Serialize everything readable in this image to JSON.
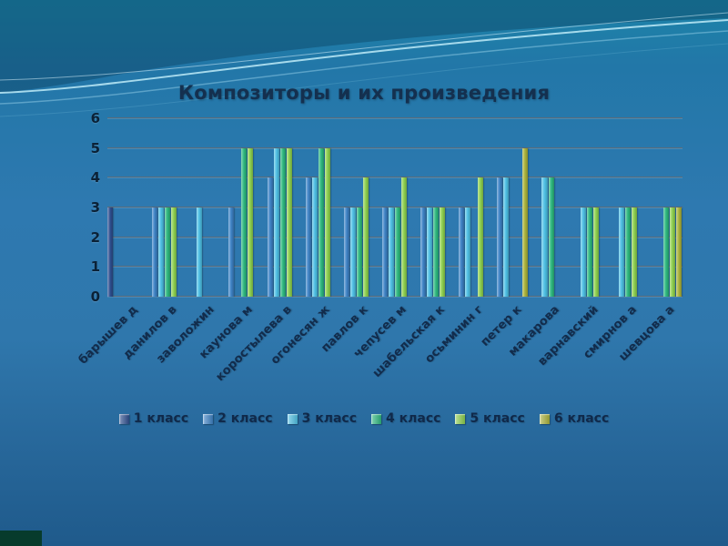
{
  "slide": {
    "title": "Композиторы и их произведения"
  },
  "chart_data": {
    "type": "bar",
    "title": "Композиторы и их произведения",
    "xlabel": "",
    "ylabel": "",
    "ylim": [
      0,
      6
    ],
    "yticks": [
      0,
      1,
      2,
      3,
      4,
      5,
      6
    ],
    "grid": true,
    "legend_position": "bottom",
    "categories": [
      "барышев д",
      "данилов в",
      "заволожин",
      "каунова м",
      "коростылева в",
      "огонесян ж",
      "павлов к",
      "чепусев м",
      "шабельская к",
      "осьминин г",
      "петер к",
      "макарова",
      "варнавский",
      "смирнов а",
      "шевцова а"
    ],
    "series": [
      {
        "name": "1 класс",
        "color": "#2e4f8f",
        "values": [
          3,
          0,
          0,
          0,
          0,
          0,
          0,
          0,
          0,
          0,
          0,
          0,
          0,
          0,
          0
        ]
      },
      {
        "name": "2 класс",
        "color": "#3e83c6",
        "values": [
          0,
          3,
          0,
          3,
          4,
          4,
          3,
          3,
          3,
          3,
          4,
          0,
          0,
          0,
          0
        ]
      },
      {
        "name": "3 класс",
        "color": "#4ec0e4",
        "values": [
          0,
          3,
          3,
          0,
          5,
          4,
          3,
          3,
          3,
          3,
          4,
          4,
          3,
          3,
          0
        ]
      },
      {
        "name": "4 класс",
        "color": "#2db87e",
        "values": [
          0,
          3,
          0,
          5,
          5,
          5,
          3,
          3,
          3,
          0,
          0,
          4,
          3,
          3,
          3
        ]
      },
      {
        "name": "5 класс",
        "color": "#8ed04f",
        "values": [
          0,
          3,
          0,
          5,
          5,
          5,
          4,
          4,
          3,
          4,
          0,
          0,
          3,
          3,
          3
        ]
      },
      {
        "name": "6 класс",
        "color": "#aab23a",
        "values": [
          0,
          0,
          0,
          0,
          0,
          0,
          0,
          0,
          0,
          0,
          5,
          0,
          0,
          0,
          3
        ]
      }
    ]
  }
}
